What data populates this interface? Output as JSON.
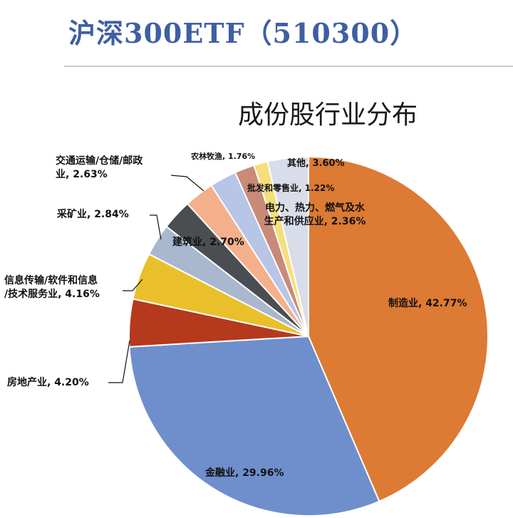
{
  "page_title": "沪深300ETF（510300）",
  "chart_data": {
    "type": "pie",
    "title": "成份股行业分布",
    "slices": [
      {
        "label": "制造业, 42.77%",
        "value": 42.77,
        "color": "#dd7a33"
      },
      {
        "label": "金融业, 29.96%",
        "value": 29.96,
        "color": "#6f8fcc"
      },
      {
        "label": "房地产业, 4.20%",
        "value": 4.2,
        "color": "#b5391c"
      },
      {
        "label": "信息传输/软件和信息/技术服务业, 4.16%",
        "value": 4.16,
        "color": "#e9c02b"
      },
      {
        "label": "采矿业, 2.84%",
        "value": 2.84,
        "color": "#a9b7cf"
      },
      {
        "label": "建筑业, 2.70%",
        "value": 2.7,
        "color": "#4a4d52"
      },
      {
        "label": "交通运输/仓储/邮政业, 2.63%",
        "value": 2.63,
        "color": "#f4b08a"
      },
      {
        "label": "电力、热力、燃气及水生产和供应业, 2.36%",
        "value": 2.36,
        "color": "#b7c5e6"
      },
      {
        "label": "农林牧渔, 1.76%",
        "value": 1.76,
        "color": "#c98a78"
      },
      {
        "label": "批发和零售业, 1.22%",
        "value": 1.22,
        "color": "#f6df7a"
      },
      {
        "label": "其他, 3.60%",
        "value": 3.6,
        "color": "#d8dde9"
      }
    ]
  }
}
